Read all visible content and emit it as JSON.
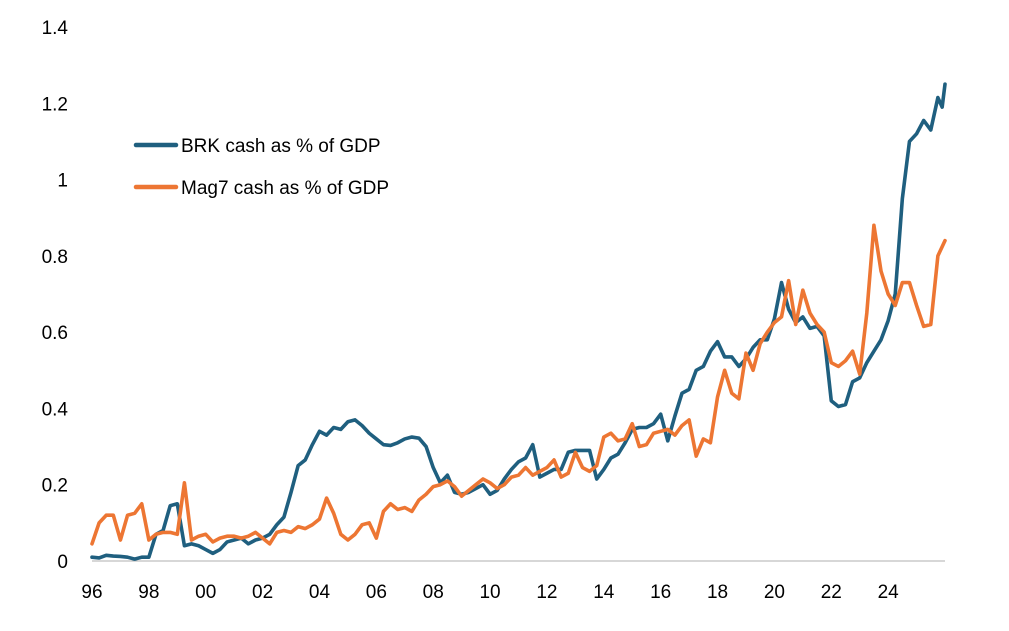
{
  "chart_data": {
    "type": "line",
    "title": "",
    "xlabel": "",
    "ylabel": "",
    "xlim": [
      1996.0,
      2025.9
    ],
    "ylim": [
      0,
      1.4
    ],
    "y_ticks": [
      {
        "value": 0,
        "label": "0"
      },
      {
        "value": 0.2,
        "label": "0.2"
      },
      {
        "value": 0.4,
        "label": "0.4"
      },
      {
        "value": 0.6,
        "label": "0.6"
      },
      {
        "value": 0.8,
        "label": "0.8"
      },
      {
        "value": 1.0,
        "label": "1"
      },
      {
        "value": 1.2,
        "label": "1.2"
      },
      {
        "value": 1.4,
        "label": "1.4"
      }
    ],
    "x_ticks": [
      {
        "value": 1996,
        "label": "96"
      },
      {
        "value": 1998,
        "label": "98"
      },
      {
        "value": 2000,
        "label": "00"
      },
      {
        "value": 2002,
        "label": "02"
      },
      {
        "value": 2004,
        "label": "04"
      },
      {
        "value": 2006,
        "label": "06"
      },
      {
        "value": 2008,
        "label": "08"
      },
      {
        "value": 2010,
        "label": "10"
      },
      {
        "value": 2012,
        "label": "12"
      },
      {
        "value": 2014,
        "label": "14"
      },
      {
        "value": 2016,
        "label": "16"
      },
      {
        "value": 2018,
        "label": "18"
      },
      {
        "value": 2020,
        "label": "20"
      },
      {
        "value": 2022,
        "label": "22"
      },
      {
        "value": 2024,
        "label": "24"
      }
    ],
    "grid": false,
    "legend_position": "upper-left",
    "series": [
      {
        "name": "BRK cash as % of GDP",
        "color": "#1f5f7f",
        "points": [
          [
            1996.0,
            0.01
          ],
          [
            1996.25,
            0.008
          ],
          [
            1996.5,
            0.015
          ],
          [
            1996.75,
            0.013
          ],
          [
            1997.0,
            0.012
          ],
          [
            1997.25,
            0.01
          ],
          [
            1997.5,
            0.005
          ],
          [
            1997.75,
            0.01
          ],
          [
            1998.0,
            0.01
          ],
          [
            1998.25,
            0.07
          ],
          [
            1998.5,
            0.08
          ],
          [
            1998.75,
            0.145
          ],
          [
            1999.0,
            0.15
          ],
          [
            1999.25,
            0.04
          ],
          [
            1999.5,
            0.045
          ],
          [
            1999.75,
            0.04
          ],
          [
            2000.0,
            0.03
          ],
          [
            2000.25,
            0.02
          ],
          [
            2000.5,
            0.03
          ],
          [
            2000.75,
            0.05
          ],
          [
            2001.0,
            0.055
          ],
          [
            2001.25,
            0.06
          ],
          [
            2001.5,
            0.045
          ],
          [
            2001.75,
            0.055
          ],
          [
            2002.0,
            0.06
          ],
          [
            2002.25,
            0.07
          ],
          [
            2002.5,
            0.095
          ],
          [
            2002.75,
            0.115
          ],
          [
            2003.0,
            0.18
          ],
          [
            2003.25,
            0.25
          ],
          [
            2003.5,
            0.265
          ],
          [
            2003.75,
            0.305
          ],
          [
            2004.0,
            0.34
          ],
          [
            2004.25,
            0.33
          ],
          [
            2004.5,
            0.35
          ],
          [
            2004.75,
            0.345
          ],
          [
            2005.0,
            0.365
          ],
          [
            2005.25,
            0.37
          ],
          [
            2005.5,
            0.355
          ],
          [
            2005.75,
            0.335
          ],
          [
            2006.0,
            0.32
          ],
          [
            2006.25,
            0.305
          ],
          [
            2006.5,
            0.303
          ],
          [
            2006.75,
            0.31
          ],
          [
            2007.0,
            0.32
          ],
          [
            2007.25,
            0.325
          ],
          [
            2007.5,
            0.322
          ],
          [
            2007.75,
            0.3
          ],
          [
            2008.0,
            0.245
          ],
          [
            2008.25,
            0.205
          ],
          [
            2008.5,
            0.225
          ],
          [
            2008.75,
            0.18
          ],
          [
            2009.0,
            0.175
          ],
          [
            2009.25,
            0.18
          ],
          [
            2009.5,
            0.19
          ],
          [
            2009.75,
            0.2
          ],
          [
            2010.0,
            0.175
          ],
          [
            2010.25,
            0.185
          ],
          [
            2010.5,
            0.215
          ],
          [
            2010.75,
            0.24
          ],
          [
            2011.0,
            0.26
          ],
          [
            2011.25,
            0.27
          ],
          [
            2011.5,
            0.305
          ],
          [
            2011.75,
            0.22
          ],
          [
            2012.0,
            0.23
          ],
          [
            2012.25,
            0.24
          ],
          [
            2012.5,
            0.24
          ],
          [
            2012.75,
            0.285
          ],
          [
            2013.0,
            0.29
          ],
          [
            2013.25,
            0.29
          ],
          [
            2013.5,
            0.29
          ],
          [
            2013.75,
            0.215
          ],
          [
            2014.0,
            0.24
          ],
          [
            2014.25,
            0.27
          ],
          [
            2014.5,
            0.28
          ],
          [
            2014.75,
            0.31
          ],
          [
            2015.0,
            0.345
          ],
          [
            2015.25,
            0.35
          ],
          [
            2015.5,
            0.35
          ],
          [
            2015.75,
            0.36
          ],
          [
            2016.0,
            0.385
          ],
          [
            2016.25,
            0.315
          ],
          [
            2016.5,
            0.38
          ],
          [
            2016.75,
            0.44
          ],
          [
            2017.0,
            0.45
          ],
          [
            2017.25,
            0.5
          ],
          [
            2017.5,
            0.51
          ],
          [
            2017.75,
            0.55
          ],
          [
            2018.0,
            0.575
          ],
          [
            2018.25,
            0.535
          ],
          [
            2018.5,
            0.535
          ],
          [
            2018.75,
            0.51
          ],
          [
            2019.0,
            0.53
          ],
          [
            2019.25,
            0.56
          ],
          [
            2019.5,
            0.58
          ],
          [
            2019.75,
            0.58
          ],
          [
            2020.0,
            0.635
          ],
          [
            2020.25,
            0.73
          ],
          [
            2020.5,
            0.66
          ],
          [
            2020.75,
            0.625
          ],
          [
            2021.0,
            0.64
          ],
          [
            2021.25,
            0.61
          ],
          [
            2021.5,
            0.615
          ],
          [
            2021.75,
            0.59
          ],
          [
            2022.0,
            0.42
          ],
          [
            2022.25,
            0.405
          ],
          [
            2022.5,
            0.41
          ],
          [
            2022.75,
            0.47
          ],
          [
            2023.0,
            0.48
          ],
          [
            2023.25,
            0.52
          ],
          [
            2023.5,
            0.55
          ],
          [
            2023.75,
            0.58
          ],
          [
            2024.0,
            0.63
          ],
          [
            2024.25,
            0.7
          ],
          [
            2024.5,
            0.95
          ],
          [
            2024.75,
            1.1
          ],
          [
            2025.0,
            1.12
          ],
          [
            2025.25,
            1.155
          ],
          [
            2025.5,
            1.13
          ],
          [
            2025.75,
            1.215
          ],
          [
            2025.9,
            1.19
          ],
          [
            2026.0,
            1.25
          ]
        ]
      },
      {
        "name": "Mag7 cash as % of GDP",
        "color": "#ed7633",
        "points": [
          [
            1996.0,
            0.045
          ],
          [
            1996.25,
            0.1
          ],
          [
            1996.5,
            0.12
          ],
          [
            1996.75,
            0.12
          ],
          [
            1997.0,
            0.055
          ],
          [
            1997.25,
            0.12
          ],
          [
            1997.5,
            0.125
          ],
          [
            1997.75,
            0.15
          ],
          [
            1998.0,
            0.055
          ],
          [
            1998.25,
            0.07
          ],
          [
            1998.5,
            0.075
          ],
          [
            1998.75,
            0.075
          ],
          [
            1999.0,
            0.07
          ],
          [
            1999.25,
            0.205
          ],
          [
            1999.5,
            0.055
          ],
          [
            1999.75,
            0.065
          ],
          [
            2000.0,
            0.07
          ],
          [
            2000.25,
            0.05
          ],
          [
            2000.5,
            0.06
          ],
          [
            2000.75,
            0.065
          ],
          [
            2001.0,
            0.065
          ],
          [
            2001.25,
            0.06
          ],
          [
            2001.5,
            0.065
          ],
          [
            2001.75,
            0.075
          ],
          [
            2002.0,
            0.06
          ],
          [
            2002.25,
            0.045
          ],
          [
            2002.5,
            0.075
          ],
          [
            2002.75,
            0.08
          ],
          [
            2003.0,
            0.075
          ],
          [
            2003.25,
            0.09
          ],
          [
            2003.5,
            0.085
          ],
          [
            2003.75,
            0.095
          ],
          [
            2004.0,
            0.11
          ],
          [
            2004.25,
            0.165
          ],
          [
            2004.5,
            0.125
          ],
          [
            2004.75,
            0.07
          ],
          [
            2005.0,
            0.055
          ],
          [
            2005.25,
            0.07
          ],
          [
            2005.5,
            0.095
          ],
          [
            2005.75,
            0.1
          ],
          [
            2006.0,
            0.06
          ],
          [
            2006.25,
            0.13
          ],
          [
            2006.5,
            0.15
          ],
          [
            2006.75,
            0.135
          ],
          [
            2007.0,
            0.14
          ],
          [
            2007.25,
            0.13
          ],
          [
            2007.5,
            0.16
          ],
          [
            2007.75,
            0.175
          ],
          [
            2008.0,
            0.195
          ],
          [
            2008.25,
            0.2
          ],
          [
            2008.5,
            0.21
          ],
          [
            2008.75,
            0.195
          ],
          [
            2009.0,
            0.17
          ],
          [
            2009.25,
            0.185
          ],
          [
            2009.5,
            0.2
          ],
          [
            2009.75,
            0.215
          ],
          [
            2010.0,
            0.205
          ],
          [
            2010.25,
            0.19
          ],
          [
            2010.5,
            0.2
          ],
          [
            2010.75,
            0.22
          ],
          [
            2011.0,
            0.225
          ],
          [
            2011.25,
            0.245
          ],
          [
            2011.5,
            0.225
          ],
          [
            2011.75,
            0.235
          ],
          [
            2012.0,
            0.245
          ],
          [
            2012.25,
            0.265
          ],
          [
            2012.5,
            0.22
          ],
          [
            2012.75,
            0.23
          ],
          [
            2013.0,
            0.285
          ],
          [
            2013.25,
            0.245
          ],
          [
            2013.5,
            0.235
          ],
          [
            2013.75,
            0.25
          ],
          [
            2014.0,
            0.325
          ],
          [
            2014.25,
            0.335
          ],
          [
            2014.5,
            0.315
          ],
          [
            2014.75,
            0.32
          ],
          [
            2015.0,
            0.36
          ],
          [
            2015.25,
            0.3
          ],
          [
            2015.5,
            0.305
          ],
          [
            2015.75,
            0.335
          ],
          [
            2016.0,
            0.34
          ],
          [
            2016.25,
            0.345
          ],
          [
            2016.5,
            0.33
          ],
          [
            2016.75,
            0.355
          ],
          [
            2017.0,
            0.37
          ],
          [
            2017.25,
            0.275
          ],
          [
            2017.5,
            0.32
          ],
          [
            2017.75,
            0.31
          ],
          [
            2018.0,
            0.43
          ],
          [
            2018.25,
            0.5
          ],
          [
            2018.5,
            0.44
          ],
          [
            2018.75,
            0.425
          ],
          [
            2019.0,
            0.545
          ],
          [
            2019.25,
            0.5
          ],
          [
            2019.5,
            0.57
          ],
          [
            2019.75,
            0.6
          ],
          [
            2020.0,
            0.625
          ],
          [
            2020.25,
            0.64
          ],
          [
            2020.5,
            0.735
          ],
          [
            2020.75,
            0.62
          ],
          [
            2021.0,
            0.71
          ],
          [
            2021.25,
            0.65
          ],
          [
            2021.5,
            0.62
          ],
          [
            2021.75,
            0.6
          ],
          [
            2022.0,
            0.52
          ],
          [
            2022.25,
            0.51
          ],
          [
            2022.5,
            0.525
          ],
          [
            2022.75,
            0.55
          ],
          [
            2023.0,
            0.49
          ],
          [
            2023.25,
            0.65
          ],
          [
            2023.5,
            0.88
          ],
          [
            2023.75,
            0.76
          ],
          [
            2024.0,
            0.7
          ],
          [
            2024.25,
            0.67
          ],
          [
            2024.5,
            0.73
          ],
          [
            2024.75,
            0.73
          ],
          [
            2025.0,
            0.67
          ],
          [
            2025.25,
            0.615
          ],
          [
            2025.5,
            0.62
          ],
          [
            2025.75,
            0.8
          ],
          [
            2026.0,
            0.84
          ]
        ]
      }
    ]
  }
}
